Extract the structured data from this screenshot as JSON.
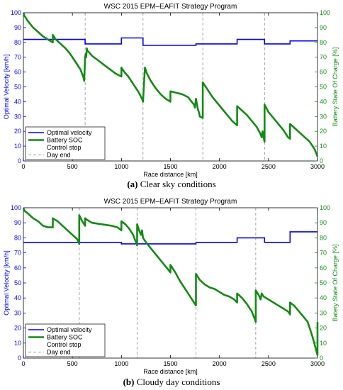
{
  "chart_data": [
    {
      "type": "line",
      "title": "WSC 2015 EPM–EAFIT Strategy Program",
      "caption_letter": "(a)",
      "caption_text": "Clear sky conditions",
      "xlabel": "Race distance [km]",
      "ylabel_left": "Optimal Velocity [km/h]",
      "ylabel_right": "Battery State Of Charge [%]",
      "xlim": [
        0,
        3000
      ],
      "ylim_left": [
        0,
        100
      ],
      "ylim_right": [
        0,
        100
      ],
      "x_ticks": [
        "0",
        "500",
        "1000",
        "1500",
        "2000",
        "2500",
        "3000"
      ],
      "y_ticks_left": [
        "0",
        "10",
        "20",
        "30",
        "40",
        "50",
        "60",
        "70",
        "80",
        "90",
        "100"
      ],
      "y_ticks_right": [
        "0",
        "10",
        "20",
        "30",
        "40",
        "50",
        "60",
        "70",
        "80",
        "90",
        "100"
      ],
      "grid": false,
      "legend_position": "bottom-left",
      "colors": {
        "velocity": "#0000ff",
        "soc": "#138a13",
        "stop": "#bbbbbb",
        "dayend": "#999999",
        "left_axis": "#0000ff",
        "right_axis": "#138a13"
      },
      "series": [
        {
          "name": "Optimal velocity",
          "axis": "left",
          "x": [
            0,
            630,
            630,
            1000,
            1000,
            1220,
            1220,
            1760,
            1760,
            2180,
            2180,
            2460,
            2460,
            2720,
            2720,
            3000
          ],
          "y": [
            82,
            82,
            79,
            79,
            83,
            83,
            78,
            78,
            79,
            79,
            82,
            82,
            79,
            79,
            81,
            81
          ]
        },
        {
          "name": "Battery SOC",
          "axis": "right",
          "x": [
            0,
            10,
            50,
            100,
            150,
            200,
            250,
            300,
            300,
            330,
            380,
            430,
            480,
            530,
            580,
            610,
            620,
            630,
            635,
            640,
            648,
            650,
            660,
            700,
            760,
            820,
            880,
            940,
            1000,
            1000,
            1030,
            1070,
            1120,
            1170,
            1210,
            1220,
            1240,
            1260,
            1300,
            1350,
            1400,
            1450,
            1500,
            1500,
            1560,
            1620,
            1680,
            1740,
            1750,
            1760,
            1780,
            1790,
            1800,
            1830,
            1830,
            1880,
            1930,
            1980,
            2030,
            2080,
            2130,
            2180,
            2180,
            2230,
            2280,
            2330,
            2380,
            2420,
            2430,
            2440,
            2450,
            2460,
            2460,
            2500,
            2550,
            2600,
            2650,
            2700,
            2720,
            2720,
            2770,
            2820,
            2870,
            2920,
            2970,
            3000
          ],
          "y": [
            100,
            98,
            94,
            90,
            87,
            84,
            82,
            80,
            85,
            82,
            79,
            76,
            72,
            67,
            62,
            57,
            54,
            70,
            72,
            70,
            76,
            74,
            74,
            71,
            68,
            65,
            62,
            59,
            57,
            63,
            60,
            57,
            52,
            47,
            42,
            40,
            63,
            59,
            54,
            49,
            45,
            42,
            40,
            47,
            46,
            45,
            43,
            38,
            36,
            42,
            35,
            33,
            30,
            29,
            53,
            48,
            43,
            39,
            35,
            31,
            27,
            24,
            37,
            34,
            31,
            27,
            23,
            18,
            16,
            20,
            16,
            13,
            38,
            33,
            29,
            25,
            21,
            16,
            15,
            25,
            22,
            19,
            16,
            13,
            8,
            3
          ]
        },
        {
          "name": "Control stop",
          "axis": "left",
          "x": [],
          "y": []
        },
        {
          "name": "Day end",
          "axis": "left",
          "x": [],
          "y": []
        }
      ],
      "control_stops": [],
      "day_ends": [
        630,
        1220,
        1830,
        2460
      ]
    },
    {
      "type": "line",
      "title": "WSC 2015 EPM–EAFIT Strategy Program",
      "caption_letter": "(b)",
      "caption_text": "Cloudy day conditions",
      "xlabel": "Race distance [km]",
      "ylabel_left": "Optimal Velocity [km/h]",
      "ylabel_right": "Batery State Of Charge [%]",
      "xlim": [
        0,
        3000
      ],
      "ylim_left": [
        0,
        100
      ],
      "ylim_right": [
        0,
        100
      ],
      "x_ticks": [
        "0",
        "500",
        "1000",
        "1500",
        "2000",
        "2500",
        "3000"
      ],
      "y_ticks_left": [
        "0",
        "10",
        "20",
        "30",
        "40",
        "50",
        "60",
        "70",
        "80",
        "90",
        "100"
      ],
      "y_ticks_right": [
        "0",
        "10",
        "20",
        "30",
        "40",
        "50",
        "60",
        "70",
        "80",
        "90",
        "100"
      ],
      "grid": false,
      "legend_position": "bottom-left",
      "colors": {
        "velocity": "#0000ff",
        "soc": "#138a13",
        "stop": "#bbbbbb",
        "dayend": "#999999",
        "left_axis": "#0000ff",
        "right_axis": "#138a13"
      },
      "series": [
        {
          "name": "Optimal velocity",
          "axis": "left",
          "x": [
            0,
            1000,
            1000,
            1760,
            1760,
            2180,
            2180,
            2460,
            2460,
            2720,
            2720,
            3000
          ],
          "y": [
            77,
            77,
            76,
            76,
            77,
            77,
            80,
            80,
            77,
            77,
            84,
            84
          ]
        },
        {
          "name": "Battery SOC",
          "axis": "right",
          "x": [
            0,
            10,
            50,
            100,
            150,
            200,
            250,
            300,
            300,
            350,
            400,
            450,
            500,
            550,
            570,
            570,
            600,
            630,
            630,
            650,
            700,
            800,
            900,
            960,
            1000,
            1000,
            1040,
            1080,
            1120,
            1160,
            1160,
            1180,
            1200,
            1210,
            1220,
            1240,
            1300,
            1350,
            1400,
            1450,
            1500,
            1500,
            1550,
            1600,
            1650,
            1700,
            1760,
            1760,
            1800,
            1850,
            1900,
            1950,
            2000,
            2050,
            2100,
            2150,
            2180,
            2180,
            2230,
            2280,
            2330,
            2360,
            2370,
            2370,
            2400,
            2420,
            2430,
            2450,
            2500,
            2550,
            2600,
            2650,
            2700,
            2720,
            2720,
            2760,
            2800,
            2850,
            2900,
            2950,
            3000,
            3000,
            3005
          ],
          "y": [
            100,
            98,
            96,
            93,
            91,
            88,
            87,
            87,
            93,
            91,
            88,
            85,
            82,
            79,
            76,
            95,
            91,
            88,
            93,
            92,
            90,
            89,
            88,
            87,
            85,
            91,
            89,
            86,
            82,
            75,
            89,
            85,
            82,
            85,
            80,
            78,
            73,
            69,
            65,
            61,
            57,
            62,
            57,
            51,
            46,
            41,
            35,
            56,
            52,
            49,
            47,
            46,
            44,
            42,
            41,
            39,
            37,
            43,
            40,
            36,
            31,
            26,
            24,
            45,
            42,
            39,
            43,
            41,
            39,
            37,
            35,
            33,
            31,
            29,
            37,
            35,
            32,
            28,
            24,
            14,
            2,
            24,
            24
          ]
        },
        {
          "name": "Control stop",
          "axis": "left",
          "x": [],
          "y": []
        },
        {
          "name": "Day end",
          "axis": "left",
          "x": [],
          "y": []
        }
      ],
      "control_stops": [],
      "day_ends": [
        570,
        1160,
        1760,
        2370
      ]
    }
  ]
}
